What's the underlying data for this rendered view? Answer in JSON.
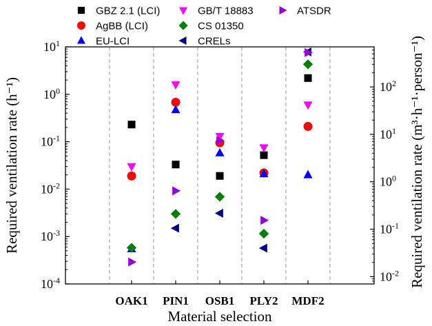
{
  "chart_data": {
    "type": "scatter",
    "xlabel": "Material selection",
    "ylabel": "Required ventilation rate (h⁻¹)",
    "y2label": "Required ventilation rate (m³·h⁻¹·person⁻¹)",
    "yscale": "log",
    "ylim": [
      0.0001,
      10
    ],
    "y_ticks": [
      "10⁻⁴",
      "10⁻³",
      "10⁻²",
      "10⁻¹",
      "10⁰",
      "10¹"
    ],
    "y2scale": "log",
    "y2lim": [
      0.007,
      700
    ],
    "y2_ticks": [
      "10⁻²",
      "10⁻¹",
      "10⁰",
      "10¹",
      "10²"
    ],
    "categories": [
      "OAK1",
      "PIN1",
      "OSB1",
      "PLY2",
      "MDF2"
    ],
    "legend_position": "top",
    "grid": "dashed vertical separators between categories",
    "series": [
      {
        "name": "GBZ 2.1 (LCI)",
        "marker": "square",
        "color": "#000000",
        "values": [
          0.23,
          0.033,
          0.019,
          0.052,
          2.2
        ]
      },
      {
        "name": "AgBB (LCI)",
        "marker": "circle",
        "color": "#ff0000",
        "values": [
          0.019,
          0.68,
          0.095,
          0.022,
          0.21
        ]
      },
      {
        "name": "EU-LCI",
        "marker": "triangle-up",
        "color": "#0000ff",
        "values": [
          0.00055,
          0.47,
          0.058,
          0.021,
          0.02
        ]
      },
      {
        "name": "GB/T 18883",
        "marker": "triangle-down",
        "color": "#ff00ff",
        "values": [
          0.03,
          1.6,
          0.13,
          0.075,
          0.6
        ]
      },
      {
        "name": "CS 01350",
        "marker": "diamond",
        "color": "#008000",
        "values": [
          0.00058,
          0.003,
          0.0069,
          0.00115,
          4.3
        ]
      },
      {
        "name": "CRELs",
        "marker": "triangle-left",
        "color": "#00008b",
        "values": [
          null,
          0.0015,
          0.0031,
          0.00057,
          7.8
        ]
      },
      {
        "name": "ATSDR",
        "marker": "triangle-right",
        "color": "#9400d3",
        "values": [
          0.00029,
          0.0092,
          0.105,
          0.0022,
          7.6
        ]
      }
    ]
  }
}
